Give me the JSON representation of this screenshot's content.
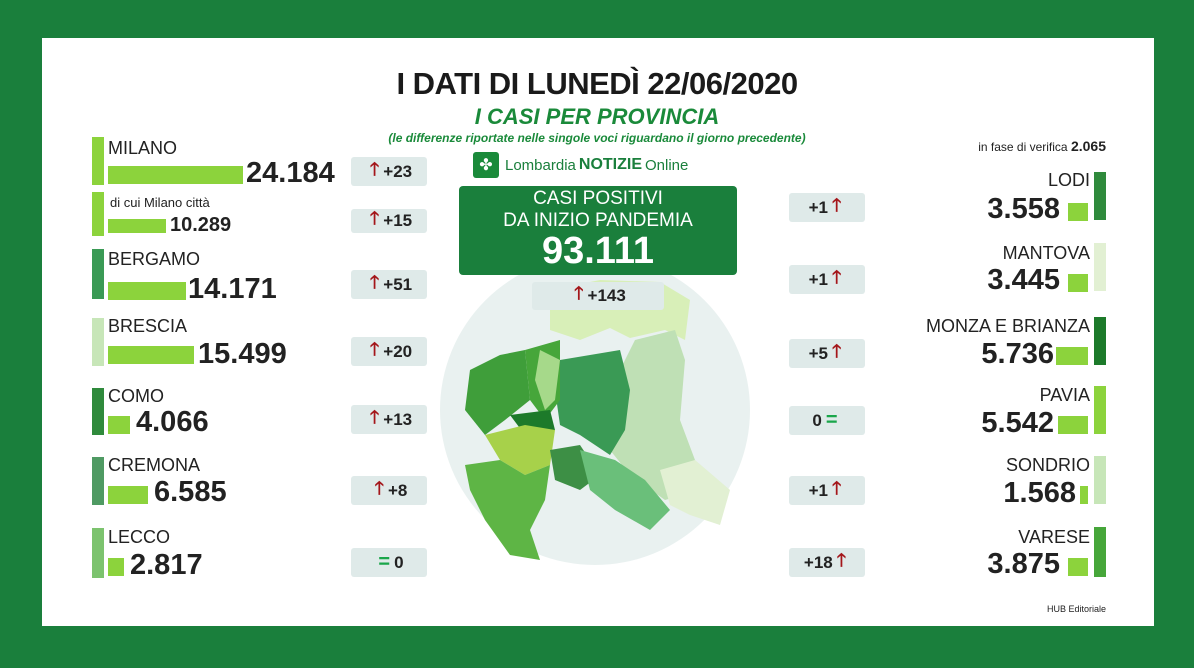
{
  "title": "I DATI DI LUNEDÌ 22/06/2020",
  "subtitle": "I CASI PER PROVINCIA",
  "note": "(le differenze riportate nelle singole voci riguardano il giorno precedente)",
  "verifica": {
    "label": "in fase di verifica",
    "value": "2.065"
  },
  "logo": {
    "pre": "Lombardia",
    "brand": "NOTIZIE",
    "post": "Online"
  },
  "total": {
    "line1": "CASI POSITIVI",
    "line2": "DA INIZIO PANDEMIA",
    "value": "93.111",
    "delta": "+143"
  },
  "left": [
    {
      "name": "MILANO",
      "value": "24.184",
      "delta": "+23"
    },
    {
      "name": "di cui Milano città",
      "value": "10.289",
      "delta": "+15"
    },
    {
      "name": "BERGAMO",
      "value": "14.171",
      "delta": "+51"
    },
    {
      "name": "BRESCIA",
      "value": "15.499",
      "delta": "+20"
    },
    {
      "name": "COMO",
      "value": "4.066",
      "delta": "+13"
    },
    {
      "name": "CREMONA",
      "value": "6.585",
      "delta": "+8"
    },
    {
      "name": "LECCO",
      "value": "2.817",
      "delta": "0"
    }
  ],
  "right": [
    {
      "name": "LODI",
      "value": "3.558",
      "delta": "+1"
    },
    {
      "name": "MANTOVA",
      "value": "3.445",
      "delta": "+1"
    },
    {
      "name": "MONZA E BRIANZA",
      "value": "5.736",
      "delta": "+5"
    },
    {
      "name": "PAVIA",
      "value": "5.542",
      "delta": "0"
    },
    {
      "name": "SONDRIO",
      "value": "1.568",
      "delta": "+1"
    },
    {
      "name": "VARESE",
      "value": "3.875",
      "delta": "+18"
    }
  ],
  "footer": "HUB Editoriale",
  "colors": {
    "background": "#1a7f3c",
    "bar": "#8cd33c",
    "arrow": "#a4161a",
    "equal": "#1aa64a",
    "delta_bg": "#dfeae9"
  }
}
